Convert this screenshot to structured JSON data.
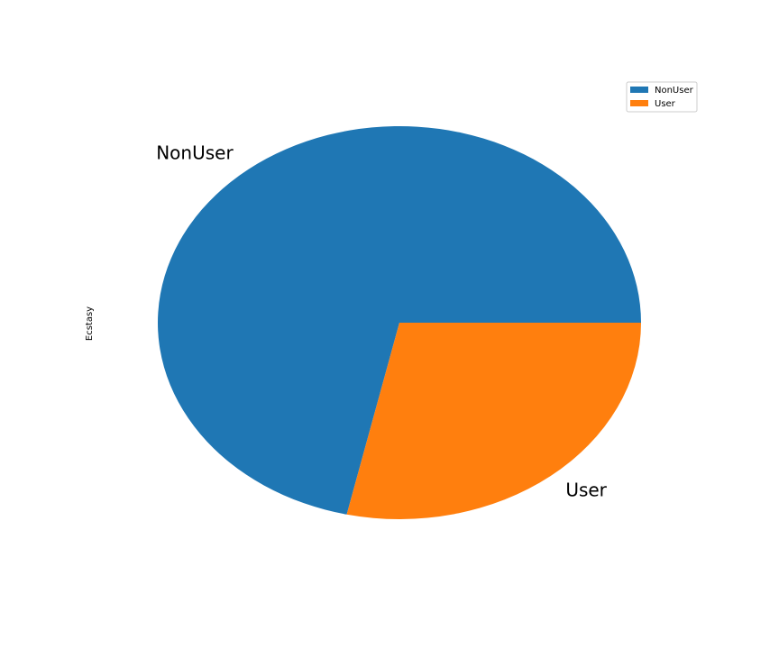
{
  "chart_data": {
    "type": "pie",
    "title": "",
    "ylabel": "Ecstasy",
    "labels": [
      "NonUser",
      "User"
    ],
    "values": [
      71.5,
      28.5
    ],
    "colors": [
      "#1f77b4",
      "#ff7f0e"
    ],
    "start_angle_deg": 0,
    "direction": "counterclockwise",
    "legend": {
      "position": "top-right",
      "entries": [
        "NonUser",
        "User"
      ]
    }
  }
}
